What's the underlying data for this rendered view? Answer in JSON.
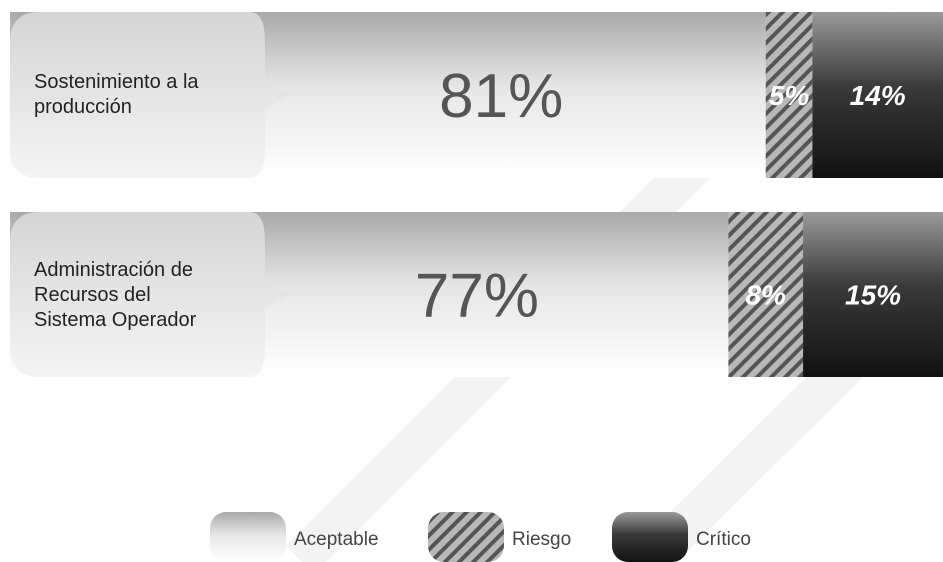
{
  "chart_data": {
    "type": "stacked-hbar",
    "categories": [
      "Sostenimiento a la producción",
      "Administración de Recursos del Sistema Operador"
    ],
    "series": [
      {
        "name": "Aceptable",
        "color": "#e4e4e4",
        "values": [
          81,
          77
        ],
        "value_labels": [
          "81%",
          "77%"
        ]
      },
      {
        "name": "Riesgo",
        "color": "#8a8a8a",
        "values": [
          5,
          8
        ],
        "value_labels": [
          "5%",
          "8%"
        ]
      },
      {
        "name": "Crítico",
        "color": "#333333",
        "values": [
          14,
          15
        ],
        "value_labels": [
          "14%",
          "15%"
        ]
      }
    ]
  }
}
